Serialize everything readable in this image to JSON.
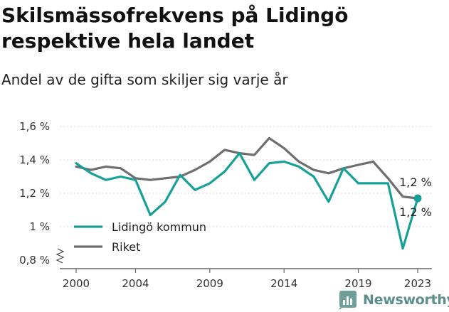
{
  "title": "Skilsmässofrekvens på Lidingö respektive hela landet",
  "subtitle": "Andel av de gifta som skiljer sig varje år",
  "brand": "Newsworthy",
  "chart_data": {
    "type": "line",
    "x": [
      2000,
      2001,
      2002,
      2003,
      2004,
      2005,
      2006,
      2007,
      2008,
      2009,
      2010,
      2011,
      2012,
      2013,
      2014,
      2015,
      2016,
      2017,
      2018,
      2019,
      2020,
      2021,
      2022,
      2023
    ],
    "series": [
      {
        "name": "Lidingö kommun",
        "color": "#17a196",
        "values": [
          1.38,
          1.32,
          1.28,
          1.3,
          1.28,
          1.07,
          1.15,
          1.31,
          1.22,
          1.26,
          1.33,
          1.44,
          1.28,
          1.38,
          1.39,
          1.36,
          1.3,
          1.15,
          1.35,
          1.26,
          1.26,
          1.26,
          0.87,
          1.17
        ]
      },
      {
        "name": "Riket",
        "color": "#6e6e70",
        "values": [
          1.36,
          1.34,
          1.36,
          1.35,
          1.29,
          1.28,
          1.29,
          1.3,
          1.34,
          1.39,
          1.46,
          1.44,
          1.43,
          1.53,
          1.47,
          1.39,
          1.34,
          1.32,
          1.35,
          1.37,
          1.39,
          1.29,
          1.18,
          1.17
        ]
      }
    ],
    "ylim": [
      0.8,
      1.6
    ],
    "yticks": [
      0.8,
      1.0,
      1.2,
      1.4,
      1.6
    ],
    "ytick_labels": [
      "0,8 %",
      "1 %",
      "1,2 %",
      "1,4 %",
      "1,6 %"
    ],
    "xticks": [
      2000,
      2004,
      2009,
      2014,
      2019,
      2023
    ],
    "xtick_labels": [
      "2000",
      "2004",
      "2009",
      "2014",
      "2019",
      "2023"
    ],
    "end_labels": [
      "1,2 %",
      "1,2 %"
    ],
    "grid": "horizontal",
    "legend_position": "bottom-left"
  }
}
